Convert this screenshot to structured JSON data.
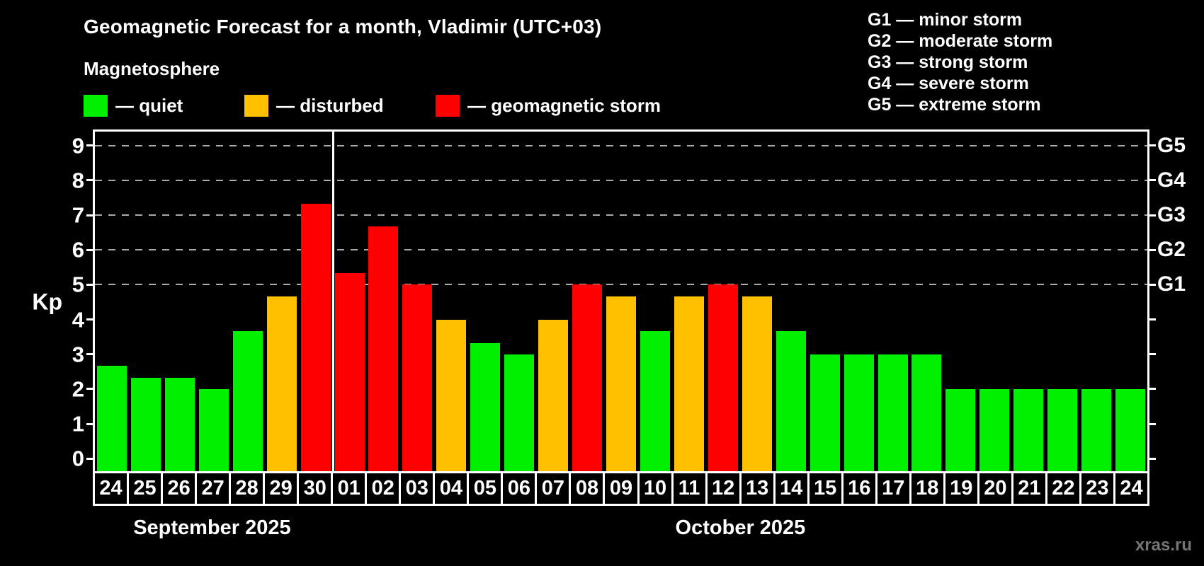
{
  "header": {
    "title": "Geomagnetic Forecast for a month, Vladimir (UTC+03)",
    "subtitle": "Magnetosphere"
  },
  "legend": {
    "items": [
      {
        "name": "quiet",
        "label": "— quiet",
        "status": "quiet",
        "color": "#00f000"
      },
      {
        "name": "disturbed",
        "label": "— disturbed",
        "status": "disturbed",
        "color": "#ffc000"
      },
      {
        "name": "storm",
        "label": "— geomagnetic storm",
        "status": "storm",
        "color": "#ff0000"
      }
    ]
  },
  "g_scale_legend": {
    "lines": [
      "G1 — minor storm",
      "G2 — moderate storm",
      "G3 — strong storm",
      "G4 — severe storm",
      "G5 — extreme storm"
    ]
  },
  "watermark": "xras.ru",
  "chart_data": {
    "type": "bar",
    "title": "Geomagnetic Forecast for a month, Vladimir (UTC+03)",
    "subtitle": "Magnetosphere",
    "ylabel": "Kp",
    "y_range": [
      -0.4,
      9.4
    ],
    "y_ticks": [
      0,
      1,
      2,
      3,
      4,
      5,
      6,
      7,
      8,
      9
    ],
    "gridlines_at": [
      5,
      6,
      7,
      8,
      9
    ],
    "grid": "dashed horizontal at Kp 5..9",
    "legend_position": "top-left",
    "right_axis_labels": [
      {
        "label": "G1",
        "value": 5
      },
      {
        "label": "G2",
        "value": 6
      },
      {
        "label": "G3",
        "value": 7
      },
      {
        "label": "G4",
        "value": 8
      },
      {
        "label": "G5",
        "value": 9
      }
    ],
    "months": [
      {
        "label": "September 2025",
        "days": 7
      },
      {
        "label": "October 2025",
        "days": 24
      }
    ],
    "colors": {
      "quiet": "#00f000",
      "disturbed": "#ffc000",
      "storm": "#ff0000"
    },
    "bars": [
      {
        "month": "sep",
        "date": "24",
        "value": 2.67,
        "status": "quiet"
      },
      {
        "month": "sep",
        "date": "25",
        "value": 2.33,
        "status": "quiet"
      },
      {
        "month": "sep",
        "date": "26",
        "value": 2.33,
        "status": "quiet"
      },
      {
        "month": "sep",
        "date": "27",
        "value": 2.0,
        "status": "quiet"
      },
      {
        "month": "sep",
        "date": "28",
        "value": 3.67,
        "status": "quiet"
      },
      {
        "month": "sep",
        "date": "29",
        "value": 4.67,
        "status": "disturbed"
      },
      {
        "month": "sep",
        "date": "30",
        "value": 7.33,
        "status": "storm"
      },
      {
        "month": "oct",
        "date": "01",
        "value": 5.33,
        "status": "storm"
      },
      {
        "month": "oct",
        "date": "02",
        "value": 6.67,
        "status": "storm"
      },
      {
        "month": "oct",
        "date": "03",
        "value": 5.0,
        "status": "storm"
      },
      {
        "month": "oct",
        "date": "04",
        "value": 4.0,
        "status": "disturbed"
      },
      {
        "month": "oct",
        "date": "05",
        "value": 3.33,
        "status": "quiet"
      },
      {
        "month": "oct",
        "date": "06",
        "value": 3.0,
        "status": "quiet"
      },
      {
        "month": "oct",
        "date": "07",
        "value": 4.0,
        "status": "disturbed"
      },
      {
        "month": "oct",
        "date": "08",
        "value": 5.0,
        "status": "storm"
      },
      {
        "month": "oct",
        "date": "09",
        "value": 4.67,
        "status": "disturbed"
      },
      {
        "month": "oct",
        "date": "10",
        "value": 3.67,
        "status": "quiet"
      },
      {
        "month": "oct",
        "date": "11",
        "value": 4.67,
        "status": "disturbed"
      },
      {
        "month": "oct",
        "date": "12",
        "value": 5.0,
        "status": "storm"
      },
      {
        "month": "oct",
        "date": "13",
        "value": 4.67,
        "status": "disturbed"
      },
      {
        "month": "oct",
        "date": "14",
        "value": 3.67,
        "status": "quiet"
      },
      {
        "month": "oct",
        "date": "15",
        "value": 3.0,
        "status": "quiet"
      },
      {
        "month": "oct",
        "date": "16",
        "value": 3.0,
        "status": "quiet"
      },
      {
        "month": "oct",
        "date": "17",
        "value": 3.0,
        "status": "quiet"
      },
      {
        "month": "oct",
        "date": "18",
        "value": 3.0,
        "status": "quiet"
      },
      {
        "month": "oct",
        "date": "19",
        "value": 2.0,
        "status": "quiet"
      },
      {
        "month": "oct",
        "date": "20",
        "value": 2.0,
        "status": "quiet"
      },
      {
        "month": "oct",
        "date": "21",
        "value": 2.0,
        "status": "quiet"
      },
      {
        "month": "oct",
        "date": "22",
        "value": 2.0,
        "status": "quiet"
      },
      {
        "month": "oct",
        "date": "23",
        "value": 2.0,
        "status": "quiet"
      },
      {
        "month": "oct",
        "date": "24",
        "value": 2.0,
        "status": "quiet"
      }
    ]
  }
}
